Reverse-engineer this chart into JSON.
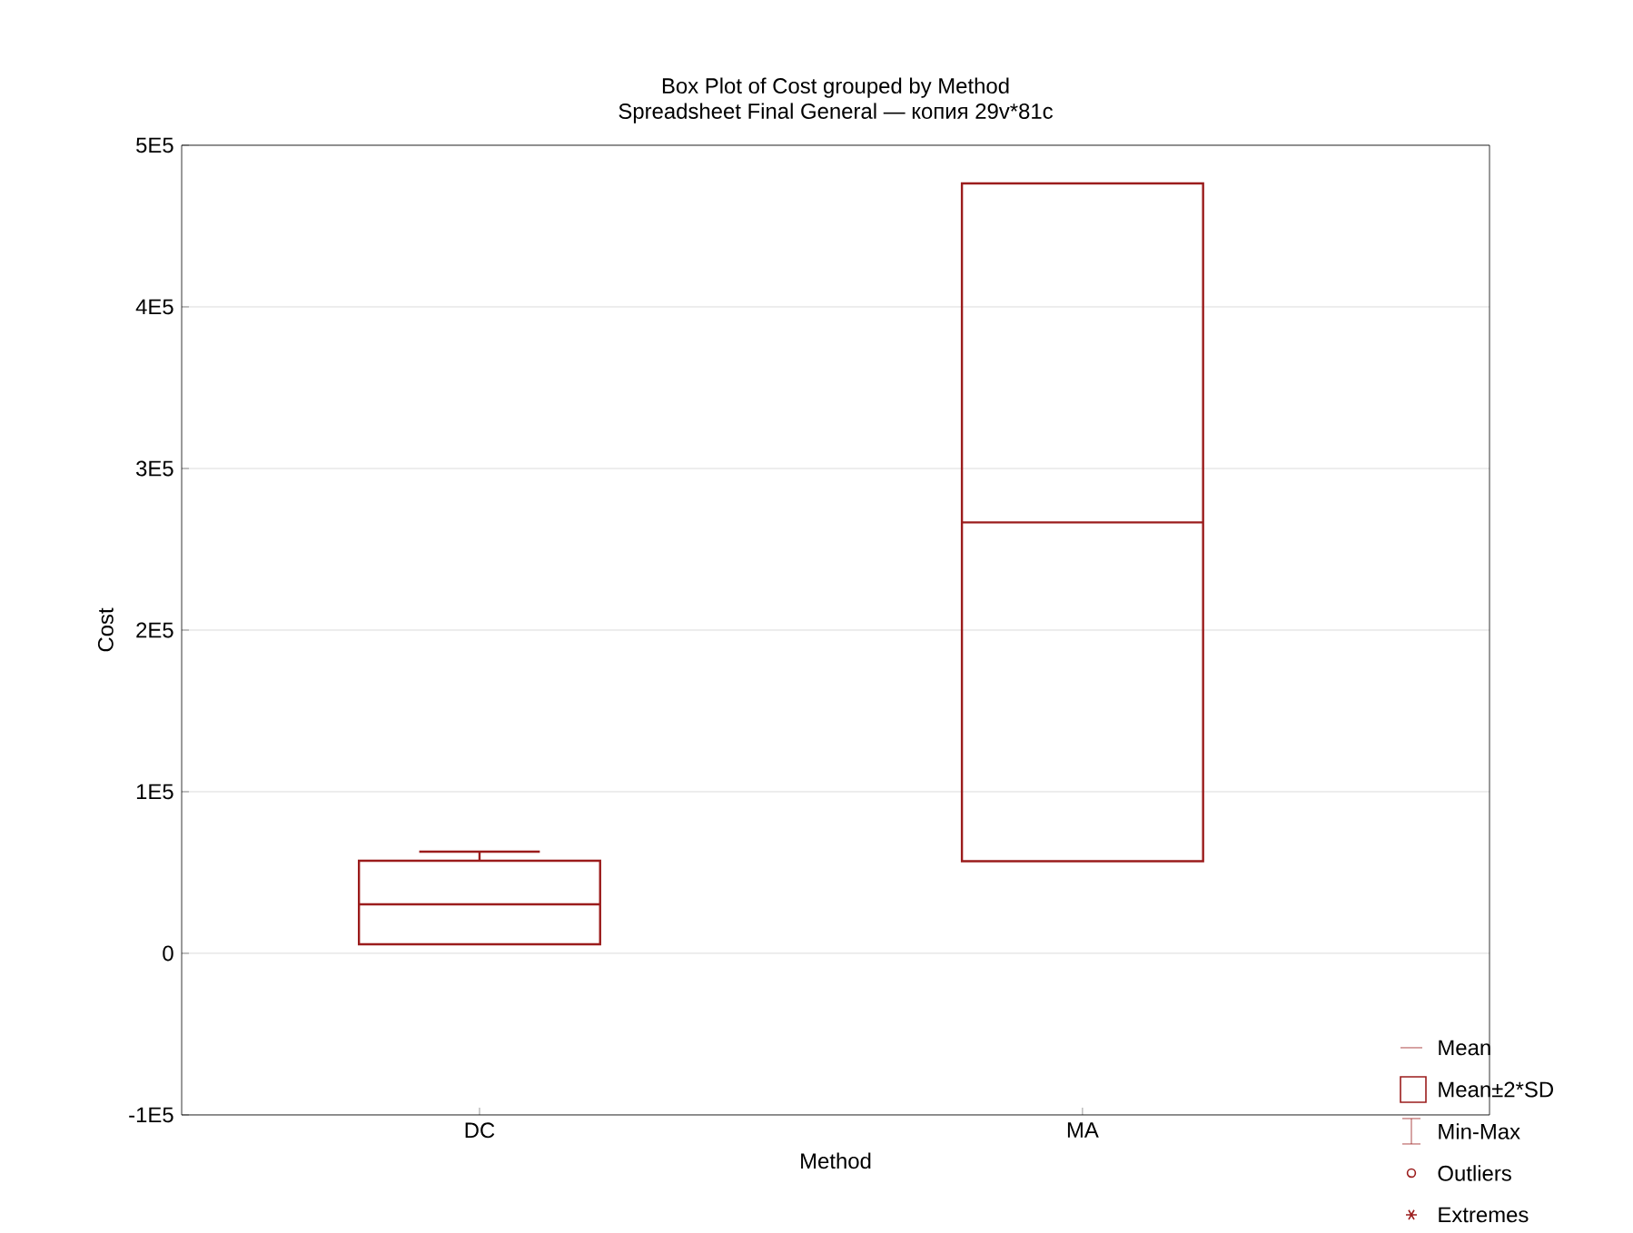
{
  "chart_data": {
    "type": "box",
    "title": "Box Plot of Cost grouped by  Method",
    "subtitle": "Spreadsheet Final General — копия 29v*81c",
    "xlabel": "Method",
    "ylabel": "Cost",
    "categories": [
      "DC",
      "MA"
    ],
    "series": [
      {
        "color": "#9b1c1c",
        "boxes": [
          {
            "low": 5600,
            "q1": 5600,
            "median": 30300,
            "q3": 57300,
            "high": 62900
          },
          {
            "low": 57000,
            "q1": 57000,
            "median": 266600,
            "q3": 476400,
            "high": 476400
          }
        ]
      }
    ],
    "ylim": [
      -100000,
      500000
    ],
    "yticks": [
      {
        "value": -100000,
        "label": "-1E5"
      },
      {
        "value": 0,
        "label": "0"
      },
      {
        "value": 100000,
        "label": "1E5"
      },
      {
        "value": 200000,
        "label": "2E5"
      },
      {
        "value": 300000,
        "label": "3E5"
      },
      {
        "value": 400000,
        "label": "4E5"
      },
      {
        "value": 500000,
        "label": "5E5"
      }
    ],
    "grid": "y",
    "annotations": [
      "Mean",
      "Mean±2*SD",
      "Min-Max",
      "Outliers",
      "Extremes"
    ]
  }
}
